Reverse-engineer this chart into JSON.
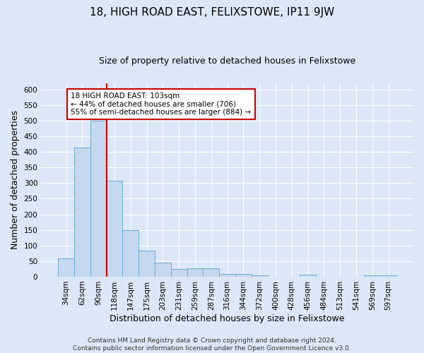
{
  "title": "18, HIGH ROAD EAST, FELIXSTOWE, IP11 9JW",
  "subtitle": "Size of property relative to detached houses in Felixstowe",
  "xlabel": "Distribution of detached houses by size in Felixstowe",
  "ylabel": "Number of detached properties",
  "footer_line1": "Contains HM Land Registry data © Crown copyright and database right 2024.",
  "footer_line2": "Contains public sector information licensed under the Open Government Licence v3.0.",
  "categories": [
    "34sqm",
    "62sqm",
    "90sqm",
    "118sqm",
    "147sqm",
    "175sqm",
    "203sqm",
    "231sqm",
    "259sqm",
    "287sqm",
    "316sqm",
    "344sqm",
    "372sqm",
    "400sqm",
    "428sqm",
    "456sqm",
    "484sqm",
    "513sqm",
    "541sqm",
    "569sqm",
    "597sqm"
  ],
  "values": [
    58,
    413,
    500,
    307,
    150,
    84,
    46,
    25,
    27,
    27,
    10,
    8,
    5,
    0,
    0,
    6,
    0,
    0,
    0,
    5,
    5
  ],
  "bar_color": "#c5d8f0",
  "bar_edge_color": "#6aaad4",
  "red_line_index": 2,
  "red_line_color": "#cc0000",
  "annotation_text": "18 HIGH ROAD EAST: 103sqm\n← 44% of detached houses are smaller (706)\n55% of semi-detached houses are larger (884) →",
  "annotation_box_color": "#ffffff",
  "annotation_box_edge_color": "#cc0000",
  "ylim": [
    0,
    620
  ],
  "yticks": [
    0,
    50,
    100,
    150,
    200,
    250,
    300,
    350,
    400,
    450,
    500,
    550,
    600
  ],
  "background_color": "#dce8f8",
  "plot_background_color": "#dce8f8",
  "title_fontsize": 11,
  "subtitle_fontsize": 9,
  "axis_label_fontsize": 9,
  "tick_fontsize": 7.5,
  "footer_fontsize": 6.5
}
